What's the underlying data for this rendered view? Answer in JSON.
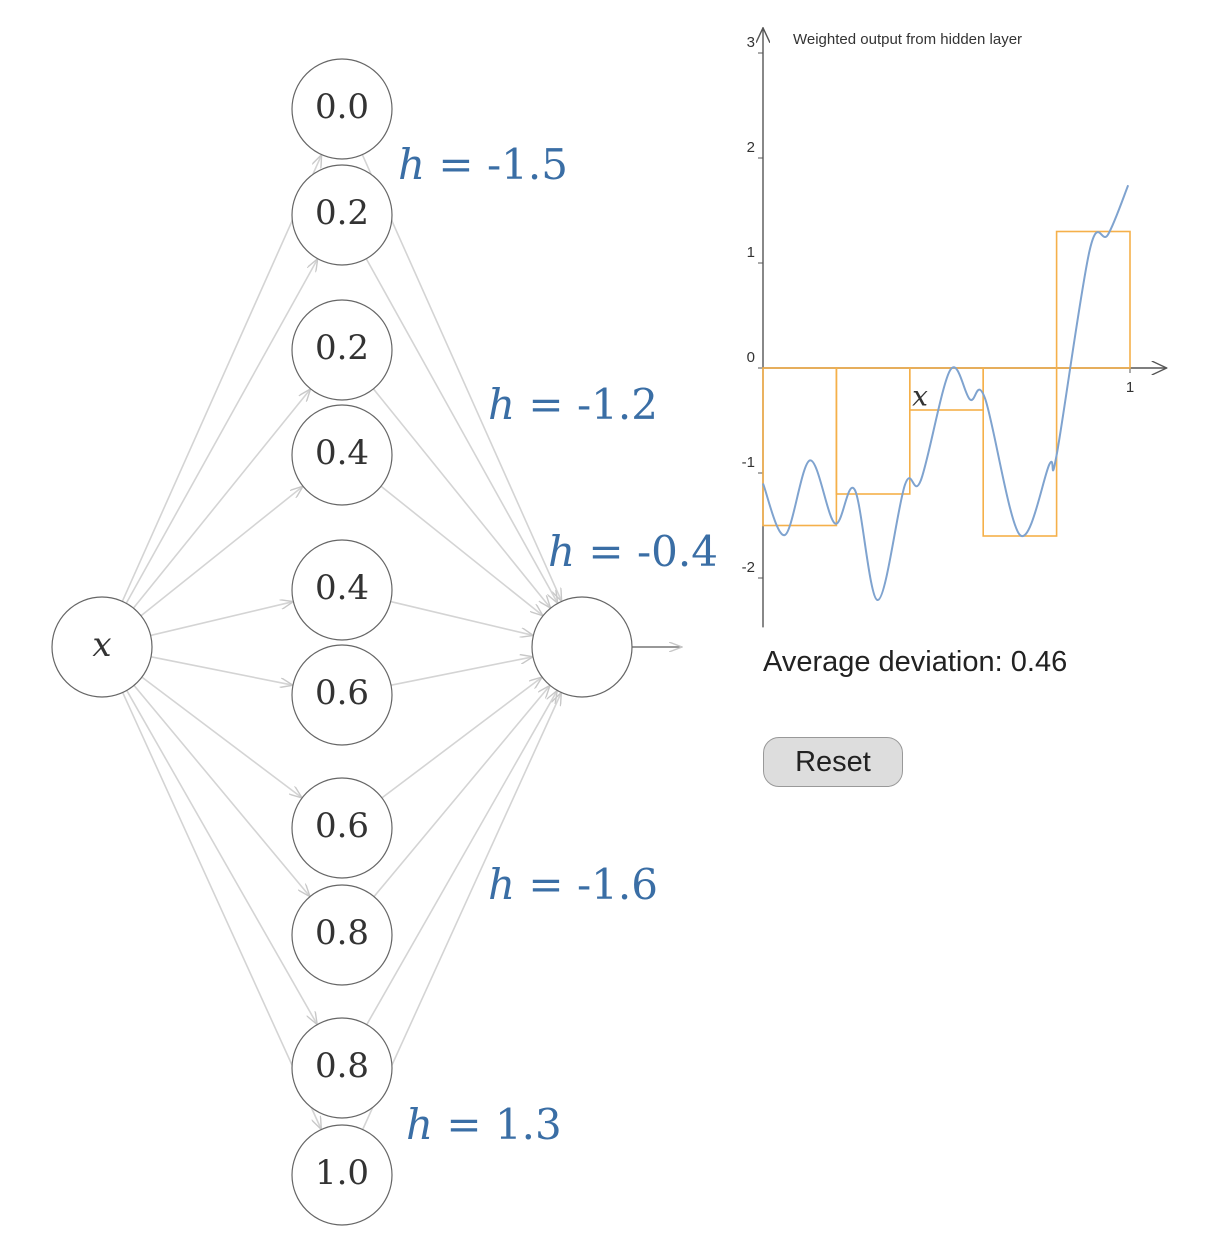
{
  "network": {
    "input": "x",
    "hidden": [
      "0.0",
      "0.2",
      "0.2",
      "0.4",
      "0.4",
      "0.6",
      "0.6",
      "0.8",
      "0.8",
      "1.0"
    ],
    "h_symbol": "h =",
    "h": [
      -1.5,
      -1.2,
      -0.4,
      -1.6,
      1.3
    ]
  },
  "chart_data": {
    "type": "line",
    "title": "Weighted output from hidden layer",
    "x_label": "x",
    "xlim": [
      0,
      1.1
    ],
    "xticks": [
      1
    ],
    "ylim": [
      -2.47,
      3.24
    ],
    "yticks": [
      -2,
      -1,
      0,
      1,
      2,
      3
    ],
    "curve": {
      "color": "#7fa3cf",
      "x": [
        0,
        0.06,
        0.128,
        0.196,
        0.25,
        0.313,
        0.387,
        0.43,
        0.51,
        0.564,
        0.605,
        0.7,
        0.78,
        0.8,
        0.89,
        0.94,
        0.995
      ],
      "y": [
        -1.1,
        -1.59,
        -0.88,
        -1.48,
        -1.16,
        -2.21,
        -1.11,
        -1.07,
        -0.02,
        -0.3,
        -0.29,
        -1.59,
        -0.92,
        -0.83,
        1.12,
        1.27,
        1.74
      ]
    },
    "steps": {
      "color": "#f5b04a",
      "edges": [
        0,
        0.2,
        0.4,
        0.6,
        0.8,
        1
      ]
    }
  },
  "deviation": {
    "label": "Average deviation:",
    "value": 0.46
  },
  "button": "Reset"
}
